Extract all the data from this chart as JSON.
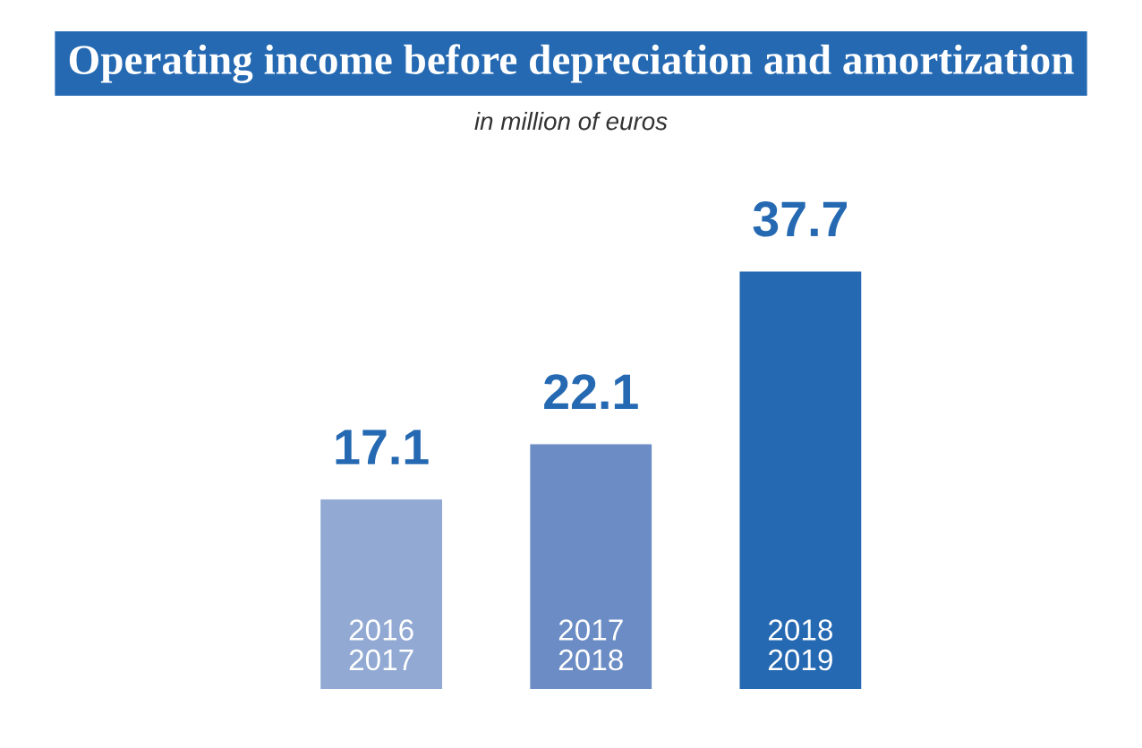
{
  "chart_data": {
    "type": "bar",
    "title": "Operating income before depreciation and amortization",
    "subtitle": "in million of euros",
    "categories": [
      "2016\n2017",
      "2017\n2018",
      "2018\n2019"
    ],
    "values": [
      17.1,
      22.1,
      37.7
    ],
    "colors": [
      "#91a9d3",
      "#6b8cc4",
      "#2569b2"
    ],
    "data_labels": true
  }
}
